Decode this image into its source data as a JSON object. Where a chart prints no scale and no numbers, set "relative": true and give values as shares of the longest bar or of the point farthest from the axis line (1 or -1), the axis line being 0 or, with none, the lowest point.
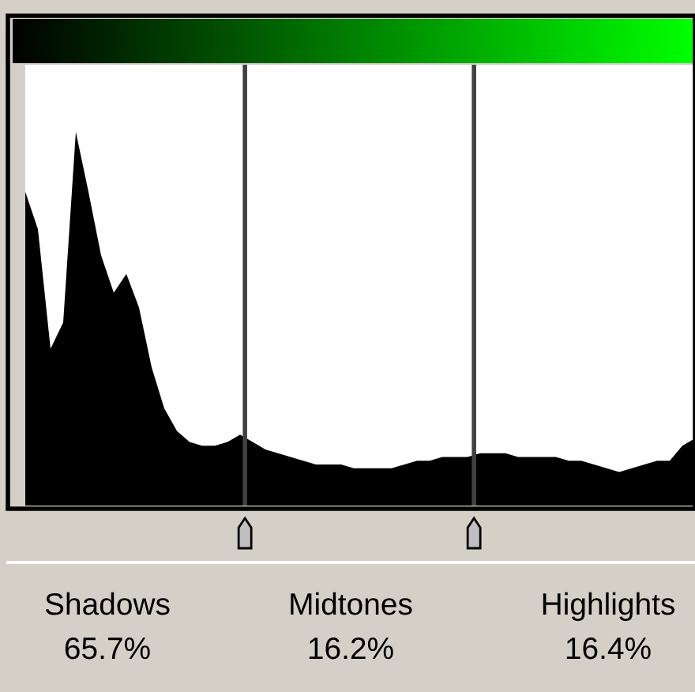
{
  "chart_data": {
    "type": "area",
    "relative": true,
    "categories": [
      null,
      null,
      null,
      null,
      null,
      null,
      null,
      null,
      null,
      null,
      null,
      null,
      null,
      null,
      null,
      null,
      null,
      null,
      null,
      null,
      null,
      null,
      null,
      null,
      null,
      null,
      null,
      null,
      null,
      null,
      null,
      null,
      null,
      null,
      null,
      null,
      null,
      null,
      null,
      null,
      null,
      null,
      null,
      null,
      null,
      null,
      null,
      null,
      null,
      null,
      null,
      null,
      null,
      null
    ],
    "series": [
      {
        "color": "#000000",
        "values": [
          0.84,
          0.74,
          0.42,
          0.49,
          1.0,
          0.84,
          0.67,
          0.57,
          0.62,
          0.53,
          0.37,
          0.26,
          0.2,
          0.17,
          0.16,
          0.16,
          0.17,
          0.19,
          0.17,
          0.15,
          0.14,
          0.13,
          0.12,
          0.11,
          0.11,
          0.11,
          0.1,
          0.1,
          0.1,
          0.1,
          0.11,
          0.12,
          0.12,
          0.13,
          0.13,
          0.13,
          0.14,
          0.14,
          0.14,
          0.13,
          0.13,
          0.13,
          0.13,
          0.12,
          0.12,
          0.11,
          0.1,
          0.09,
          0.1,
          0.11,
          0.12,
          0.12,
          0.16,
          0.18
        ]
      }
    ],
    "annotations": [
      "Shadows",
      "Midtones",
      "Highlights",
      "65.7%",
      "16.2%",
      "16.4%"
    ]
  }
}
